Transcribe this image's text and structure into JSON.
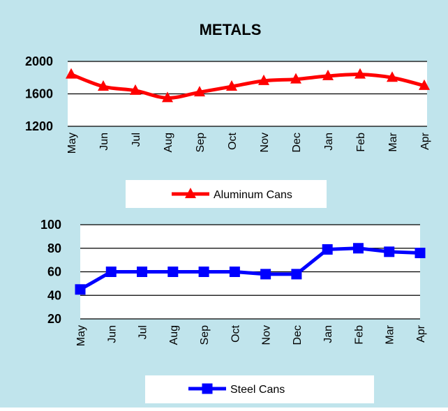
{
  "colors": {
    "background": "#C0E4EC",
    "plot": "#FFFFFF",
    "aluminum": "#FF0000",
    "steel": "#0000FF"
  },
  "chart_data": [
    {
      "type": "line",
      "title": "METALS",
      "xlabel": "",
      "ylabel": "",
      "categories": [
        "May",
        "Jun",
        "Jul",
        "Aug",
        "Sep",
        "Oct",
        "Nov",
        "Dec",
        "Jan",
        "Feb",
        "Mar",
        "Apr"
      ],
      "yticks": [
        1200,
        1600,
        2000
      ],
      "ylim": [
        1200,
        2000
      ],
      "grid": true,
      "legend": "bottom",
      "series": [
        {
          "name": "Aluminum Cans",
          "marker": "triangle",
          "values": [
            1840,
            1690,
            1640,
            1550,
            1620,
            1690,
            1760,
            1780,
            1820,
            1840,
            1800,
            1700
          ]
        }
      ]
    },
    {
      "type": "line",
      "title": "",
      "xlabel": "",
      "ylabel": "",
      "categories": [
        "May",
        "Jun",
        "Jul",
        "Aug",
        "Sep",
        "Oct",
        "Nov",
        "Dec",
        "Jan",
        "Feb",
        "Mar",
        "Apr"
      ],
      "yticks": [
        20,
        40,
        60,
        80,
        100
      ],
      "ylim": [
        20,
        100
      ],
      "grid": true,
      "legend": "bottom",
      "series": [
        {
          "name": "Steel Cans",
          "marker": "square",
          "values": [
            45,
            60,
            60,
            60,
            60,
            60,
            58,
            58,
            79,
            80,
            77,
            76
          ]
        }
      ]
    }
  ]
}
